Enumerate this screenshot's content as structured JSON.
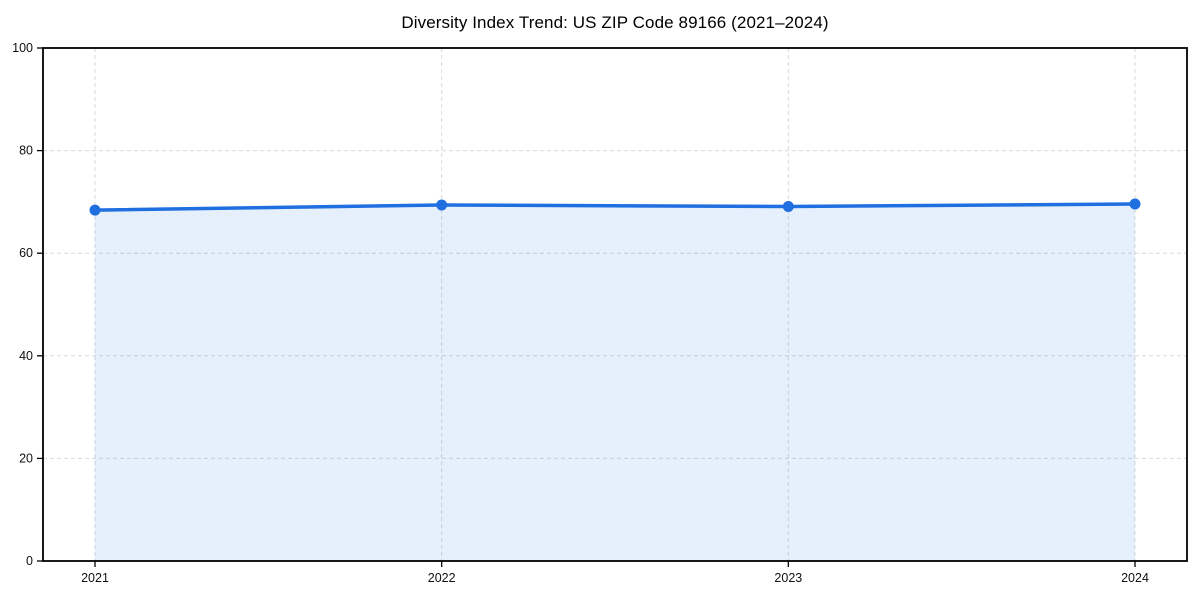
{
  "chart_data": {
    "type": "area",
    "title": "Diversity Index Trend: US ZIP Code 89166 (2021–2024)",
    "x": [
      2021,
      2022,
      2023,
      2024
    ],
    "series": [
      {
        "name": "Diversity Index",
        "values": [
          68.4,
          69.4,
          69.1,
          69.6
        ]
      }
    ],
    "xlabel": "",
    "ylabel": "",
    "xlim": [
      2020.85,
      2024.15
    ],
    "ylim": [
      0,
      100
    ],
    "xticks": [
      2021,
      2022,
      2023,
      2024
    ],
    "yticks": [
      0,
      20,
      40,
      60,
      80,
      100
    ],
    "grid": true,
    "grid_style": "dashed",
    "legend": false,
    "colors": {
      "line": "#1f6fe0",
      "marker": "#1f6fe0",
      "fill": "#1f6fe0",
      "fill_opacity": 0.11,
      "grid": "#d9d9d9",
      "axis_box": "#000000",
      "tick": "#000000",
      "tick_label": "#111111",
      "background": "#ffffff"
    }
  }
}
